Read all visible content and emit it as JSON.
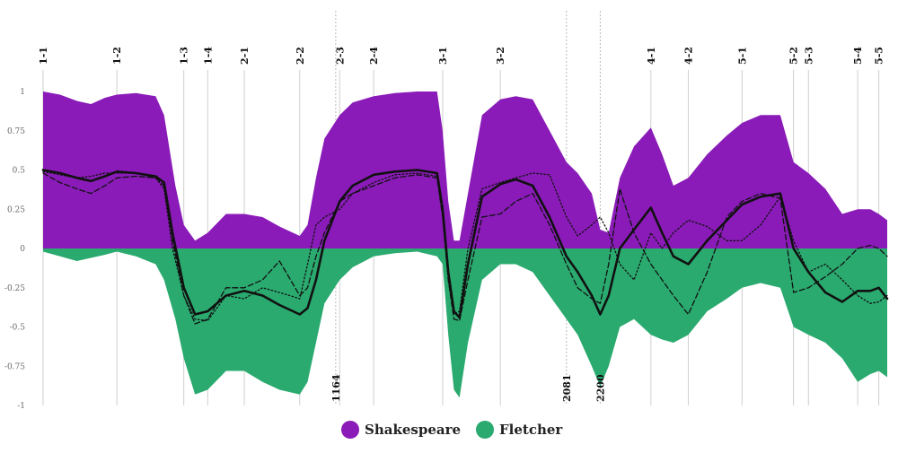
{
  "chart_data": {
    "type": "area",
    "title": "",
    "xlabel": "",
    "ylabel": "",
    "ylim": [
      -1,
      1
    ],
    "xlim": [
      0,
      3000
    ],
    "y_ticks": [
      {
        "value": 1,
        "label": "1"
      },
      {
        "value": 0.75,
        "label": "0.75"
      },
      {
        "value": 0.5,
        "label": "0.5"
      },
      {
        "value": 0.25,
        "label": "0.25"
      },
      {
        "value": 0,
        "label": "0"
      },
      {
        "value": -0.25,
        "label": "-0.25"
      },
      {
        "value": -0.5,
        "label": "-0.5"
      },
      {
        "value": -0.75,
        "label": "-0.75"
      },
      {
        "value": -1,
        "label": "-1"
      }
    ],
    "scenes": [
      {
        "label": "1-1",
        "x": 0
      },
      {
        "label": "1-2",
        "x": 262
      },
      {
        "label": "1-3",
        "x": 500
      },
      {
        "label": "1-4",
        "x": 585
      },
      {
        "label": "2-1",
        "x": 715
      },
      {
        "label": "2-2",
        "x": 912
      },
      {
        "label": "2-3",
        "x": 1054
      },
      {
        "label": "2-4",
        "x": 1175
      },
      {
        "label": "3-1",
        "x": 1420
      },
      {
        "label": "3-2",
        "x": 1625
      },
      {
        "label": "4-1",
        "x": 2160
      },
      {
        "label": "4-2",
        "x": 2293
      },
      {
        "label": "5-1",
        "x": 2484
      },
      {
        "label": "5-2",
        "x": 2667
      },
      {
        "label": "5-3",
        "x": 2720
      },
      {
        "label": "5-4",
        "x": 2895
      },
      {
        "label": "5-5",
        "x": 2970
      }
    ],
    "line_markers": [
      {
        "label": "1164",
        "x": 1040
      },
      {
        "label": "2081",
        "x": 1860
      },
      {
        "label": "2200",
        "x": 1980
      }
    ],
    "legend": {
      "position": "bottom-center",
      "entries": [
        {
          "name": "Shakespeare",
          "color": "#8a1bb8"
        },
        {
          "name": "Fletcher",
          "color": "#2aaa6f"
        }
      ]
    },
    "series": [
      {
        "name": "Shakespeare",
        "kind": "area-upper",
        "color": "#8a1bb8",
        "x": [
          0,
          60,
          120,
          170,
          220,
          262,
          330,
          400,
          430,
          470,
          500,
          540,
          585,
          650,
          715,
          780,
          840,
          912,
          940,
          970,
          1000,
          1054,
          1100,
          1175,
          1250,
          1330,
          1400,
          1420,
          1440,
          1460,
          1480,
          1510,
          1560,
          1625,
          1680,
          1740,
          1800,
          1860,
          1900,
          1950,
          1980,
          2010,
          2050,
          2100,
          2160,
          2200,
          2240,
          2293,
          2360,
          2430,
          2484,
          2550,
          2620,
          2667,
          2720,
          2780,
          2840,
          2895,
          2940,
          2970,
          3000
        ],
        "values": [
          1.0,
          0.98,
          0.94,
          0.92,
          0.96,
          0.98,
          0.99,
          0.97,
          0.85,
          0.4,
          0.15,
          0.05,
          0.1,
          0.22,
          0.22,
          0.2,
          0.14,
          0.08,
          0.15,
          0.45,
          0.7,
          0.85,
          0.93,
          0.97,
          0.99,
          1.0,
          1.0,
          0.75,
          0.3,
          0.05,
          0.05,
          0.35,
          0.85,
          0.95,
          0.97,
          0.95,
          0.75,
          0.55,
          0.48,
          0.35,
          0.12,
          0.1,
          0.45,
          0.65,
          0.77,
          0.6,
          0.4,
          0.45,
          0.6,
          0.72,
          0.8,
          0.85,
          0.85,
          0.55,
          0.48,
          0.38,
          0.22,
          0.25,
          0.25,
          0.22,
          0.18
        ]
      },
      {
        "name": "Fletcher",
        "kind": "area-lower",
        "color": "#2aaa6f",
        "x": [
          0,
          60,
          120,
          170,
          220,
          262,
          330,
          400,
          430,
          470,
          500,
          540,
          585,
          650,
          715,
          780,
          840,
          912,
          940,
          970,
          1000,
          1054,
          1100,
          1175,
          1250,
          1330,
          1400,
          1420,
          1440,
          1460,
          1480,
          1510,
          1560,
          1625,
          1680,
          1740,
          1800,
          1860,
          1900,
          1950,
          1980,
          2010,
          2050,
          2100,
          2160,
          2200,
          2240,
          2293,
          2360,
          2430,
          2484,
          2550,
          2620,
          2667,
          2720,
          2780,
          2840,
          2895,
          2940,
          2970,
          3000
        ],
        "values": [
          -0.02,
          -0.05,
          -0.08,
          -0.06,
          -0.04,
          -0.02,
          -0.05,
          -0.1,
          -0.2,
          -0.45,
          -0.7,
          -0.93,
          -0.9,
          -0.78,
          -0.78,
          -0.85,
          -0.9,
          -0.93,
          -0.85,
          -0.6,
          -0.35,
          -0.2,
          -0.12,
          -0.05,
          -0.03,
          -0.02,
          -0.05,
          -0.1,
          -0.55,
          -0.9,
          -0.95,
          -0.6,
          -0.2,
          -0.1,
          -0.1,
          -0.15,
          -0.3,
          -0.45,
          -0.55,
          -0.75,
          -0.88,
          -0.75,
          -0.5,
          -0.45,
          -0.55,
          -0.58,
          -0.6,
          -0.55,
          -0.4,
          -0.32,
          -0.25,
          -0.22,
          -0.25,
          -0.5,
          -0.55,
          -0.6,
          -0.7,
          -0.85,
          -0.8,
          -0.78,
          -0.82
        ]
      },
      {
        "name": "",
        "kind": "line-solid",
        "color": "#111111",
        "x": [
          0,
          60,
          120,
          170,
          220,
          262,
          330,
          400,
          430,
          460,
          500,
          540,
          585,
          650,
          715,
          780,
          840,
          912,
          940,
          970,
          1000,
          1054,
          1100,
          1175,
          1250,
          1330,
          1400,
          1420,
          1440,
          1460,
          1480,
          1510,
          1560,
          1625,
          1680,
          1740,
          1800,
          1860,
          1900,
          1950,
          1980,
          2010,
          2050,
          2100,
          2160,
          2200,
          2240,
          2293,
          2360,
          2430,
          2484,
          2550,
          2620,
          2667,
          2720,
          2780,
          2840,
          2895,
          2940,
          2970,
          3000
        ],
        "values": [
          0.5,
          0.48,
          0.45,
          0.43,
          0.46,
          0.49,
          0.48,
          0.46,
          0.42,
          0.1,
          -0.25,
          -0.42,
          -0.4,
          -0.3,
          -0.27,
          -0.3,
          -0.36,
          -0.42,
          -0.38,
          -0.2,
          0.05,
          0.3,
          0.4,
          0.47,
          0.49,
          0.5,
          0.48,
          0.25,
          -0.15,
          -0.4,
          -0.44,
          -0.1,
          0.33,
          0.41,
          0.44,
          0.4,
          0.2,
          -0.05,
          -0.15,
          -0.3,
          -0.42,
          -0.3,
          0.0,
          0.12,
          0.26,
          0.1,
          -0.05,
          -0.1,
          0.05,
          0.18,
          0.28,
          0.33,
          0.35,
          0.0,
          -0.15,
          -0.28,
          -0.34,
          -0.27,
          -0.27,
          -0.25,
          -0.32
        ]
      },
      {
        "name": "",
        "kind": "line-dashed",
        "color": "#111111",
        "x": [
          0,
          60,
          120,
          170,
          220,
          262,
          330,
          400,
          430,
          460,
          500,
          540,
          585,
          650,
          715,
          780,
          840,
          912,
          940,
          970,
          1000,
          1054,
          1100,
          1175,
          1250,
          1330,
          1400,
          1420,
          1440,
          1460,
          1480,
          1510,
          1560,
          1625,
          1680,
          1740,
          1800,
          1860,
          1900,
          1950,
          1980,
          2010,
          2050,
          2100,
          2160,
          2200,
          2240,
          2293,
          2360,
          2430,
          2484,
          2550,
          2620,
          2667,
          2720,
          2780,
          2840,
          2895,
          2940,
          2970,
          3000
        ],
        "values": [
          0.48,
          0.42,
          0.38,
          0.35,
          0.4,
          0.45,
          0.46,
          0.45,
          0.4,
          0.05,
          -0.3,
          -0.48,
          -0.45,
          -0.25,
          -0.25,
          -0.2,
          -0.08,
          -0.3,
          -0.25,
          -0.05,
          0.1,
          0.3,
          0.35,
          0.4,
          0.45,
          0.47,
          0.45,
          0.2,
          -0.2,
          -0.45,
          -0.46,
          -0.2,
          0.2,
          0.22,
          0.3,
          0.35,
          0.15,
          -0.1,
          -0.25,
          -0.32,
          -0.35,
          -0.1,
          0.38,
          0.1,
          -0.1,
          -0.2,
          -0.3,
          -0.42,
          -0.15,
          0.2,
          0.3,
          0.35,
          0.32,
          -0.28,
          -0.25,
          -0.18,
          -0.1,
          0.0,
          0.02,
          0.0,
          -0.05
        ]
      },
      {
        "name": "",
        "kind": "line-dotted",
        "color": "#111111",
        "x": [
          0,
          60,
          120,
          170,
          220,
          262,
          330,
          400,
          430,
          460,
          500,
          540,
          585,
          650,
          715,
          780,
          840,
          912,
          940,
          970,
          1000,
          1054,
          1100,
          1175,
          1250,
          1330,
          1400,
          1420,
          1440,
          1460,
          1480,
          1510,
          1560,
          1625,
          1680,
          1740,
          1800,
          1860,
          1900,
          1950,
          1980,
          2010,
          2050,
          2100,
          2160,
          2200,
          2240,
          2293,
          2360,
          2430,
          2484,
          2550,
          2620,
          2667,
          2720,
          2780,
          2840,
          2895,
          2940,
          2970,
          3000
        ],
        "values": [
          0.49,
          0.47,
          0.45,
          0.46,
          0.48,
          0.48,
          0.48,
          0.45,
          0.38,
          0.0,
          -0.3,
          -0.45,
          -0.46,
          -0.3,
          -0.32,
          -0.25,
          -0.28,
          -0.32,
          -0.1,
          0.15,
          0.2,
          0.25,
          0.35,
          0.42,
          0.47,
          0.48,
          0.46,
          0.22,
          -0.2,
          -0.42,
          -0.4,
          0.0,
          0.38,
          0.42,
          0.45,
          0.48,
          0.47,
          0.2,
          0.08,
          0.15,
          0.2,
          0.1,
          -0.1,
          -0.2,
          0.1,
          0.0,
          0.1,
          0.18,
          0.14,
          0.05,
          0.05,
          0.15,
          0.33,
          0.05,
          -0.15,
          -0.1,
          -0.2,
          -0.3,
          -0.35,
          -0.34,
          -0.3
        ]
      }
    ]
  }
}
